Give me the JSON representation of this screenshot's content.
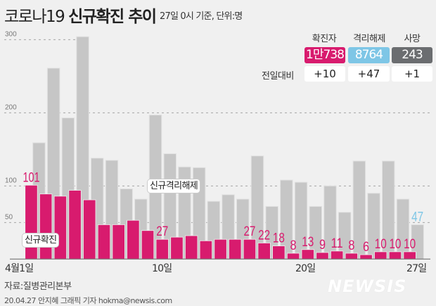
{
  "header": {
    "title_light": "코로나19",
    "title_bold": "신규확진 추이",
    "subtitle": "27일 0시 기준, 단위:명"
  },
  "summary": {
    "columns": [
      {
        "label": "확진자",
        "value": "1만738",
        "diff": "+10",
        "color": "#d81b6e"
      },
      {
        "label": "격리해제",
        "value": "8764",
        "diff": "+47",
        "color": "#7ec6e6"
      },
      {
        "label": "사망",
        "value": "243",
        "diff": "+1",
        "color": "#6b6d70"
      }
    ],
    "diff_label": "전일대비"
  },
  "chart_data": {
    "type": "bar",
    "title": "",
    "ylim": [
      0,
      310
    ],
    "yticks": [
      "300",
      "200",
      "100",
      "50"
    ],
    "ytick_values": [
      300,
      200,
      100,
      50
    ],
    "grid": "dashed",
    "x_labels": [
      {
        "day": 1,
        "text": "4월1일"
      },
      {
        "day": 10,
        "text": "10일"
      },
      {
        "day": 20,
        "text": "20일"
      },
      {
        "day": 27,
        "text": "27일"
      }
    ],
    "days": [
      1,
      2,
      3,
      4,
      5,
      6,
      7,
      8,
      9,
      10,
      11,
      12,
      13,
      14,
      15,
      16,
      17,
      18,
      19,
      20,
      21,
      22,
      23,
      24,
      25,
      26,
      27
    ],
    "series": [
      {
        "name": "신규격리해제",
        "color": "#c6c6c6",
        "values": [
          159,
          261,
          193,
          304,
          138,
          135,
          96,
          82,
          197,
          144,
          126,
          125,
          79,
          88,
          82,
          141,
          72,
          108,
          105,
          72,
          100,
          64,
          134,
          90,
          134,
          82,
          47
        ],
        "data_labels": [
          {
            "day": 27,
            "text": "47",
            "color": "#7ec6e6"
          }
        ]
      },
      {
        "name": "신규확진",
        "color": "#d81b6e",
        "values": [
          101,
          89,
          86,
          94,
          81,
          47,
          47,
          53,
          39,
          27,
          30,
          32,
          25,
          27,
          27,
          27,
          22,
          18,
          8,
          13,
          9,
          11,
          8,
          6,
          10,
          10,
          10
        ],
        "data_labels": [
          {
            "day": 1,
            "text": "101"
          },
          {
            "day": 10,
            "text": "27"
          },
          {
            "day": 16,
            "text": "27"
          },
          {
            "day": 17,
            "text": "22"
          },
          {
            "day": 18,
            "text": "18"
          },
          {
            "day": 19,
            "text": "8"
          },
          {
            "day": 20,
            "text": "13"
          },
          {
            "day": 21,
            "text": "9"
          },
          {
            "day": 22,
            "text": "11"
          },
          {
            "day": 23,
            "text": "8"
          },
          {
            "day": 24,
            "text": "6"
          },
          {
            "day": 25,
            "text": "10"
          },
          {
            "day": 26,
            "text": "10"
          },
          {
            "day": 27,
            "text": "10"
          }
        ]
      }
    ]
  },
  "footer": {
    "source": "자료:질병관리본부",
    "credit": "20.04.27  안지혜 그래픽 기자 hokma@newsis.com",
    "logo": "NEWSIS"
  }
}
